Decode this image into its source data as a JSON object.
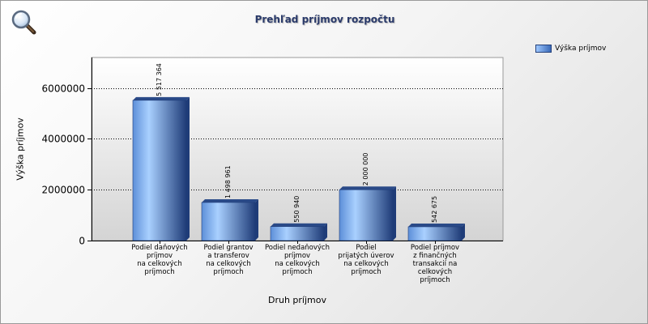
{
  "chart_data": {
    "type": "bar",
    "title": "Prehľad príjmov rozpočtu",
    "xlabel": "Druh príjmov",
    "ylabel": "Výška príjmov",
    "ylim": [
      0,
      7200000
    ],
    "yticks": [
      0,
      2000000,
      4000000,
      6000000
    ],
    "ytick_labels": [
      "0",
      "2000000",
      "4000000",
      "6000000"
    ],
    "grid": true,
    "legend_position": "top-right",
    "categories": [
      "Podiel daňových príjmov na celkových príjmoch",
      "Podiel grantov a transferov na celkových príjmoch",
      "Podiel nedaňových príjmov na celkových príjmoch",
      "Podiel prijatých úverov na celkových príjmoch",
      "Podiel príjmov z finančných transakcií na celkových príjmoch"
    ],
    "category_lines": [
      [
        "Podiel daňových",
        "príjmov",
        "na celkových",
        "príjmoch"
      ],
      [
        "Podiel grantov",
        "a transferov",
        "na celkových",
        "príjmoch"
      ],
      [
        "Podiel nedaňových",
        "príjmov",
        "na celkových",
        "príjmoch"
      ],
      [
        "Podiel",
        "prijatých úverov",
        "na celkových",
        "príjmoch"
      ],
      [
        "Podiel príjmov",
        "z finančných",
        "transakcií na",
        "celkových",
        "príjmoch"
      ]
    ],
    "series": [
      {
        "name": "Výška príjmov",
        "values": [
          5517364,
          1498961,
          550940,
          2000000,
          542675
        ],
        "data_labels": [
          "5 517 364",
          "1 498 961",
          "550 940",
          "2 000 000",
          "542 675"
        ]
      }
    ],
    "colors": {
      "bar_light": "#a9d0ff",
      "bar_mid": "#5d8fd8",
      "bar_dark": "#1f3c78",
      "bar_top": "#2a4a88",
      "plot_top": "#ffffff",
      "plot_bottom": "#d4d4d4",
      "title": "#2a3a6a"
    }
  },
  "ui": {
    "zoom_icon": "magnifier-icon"
  }
}
